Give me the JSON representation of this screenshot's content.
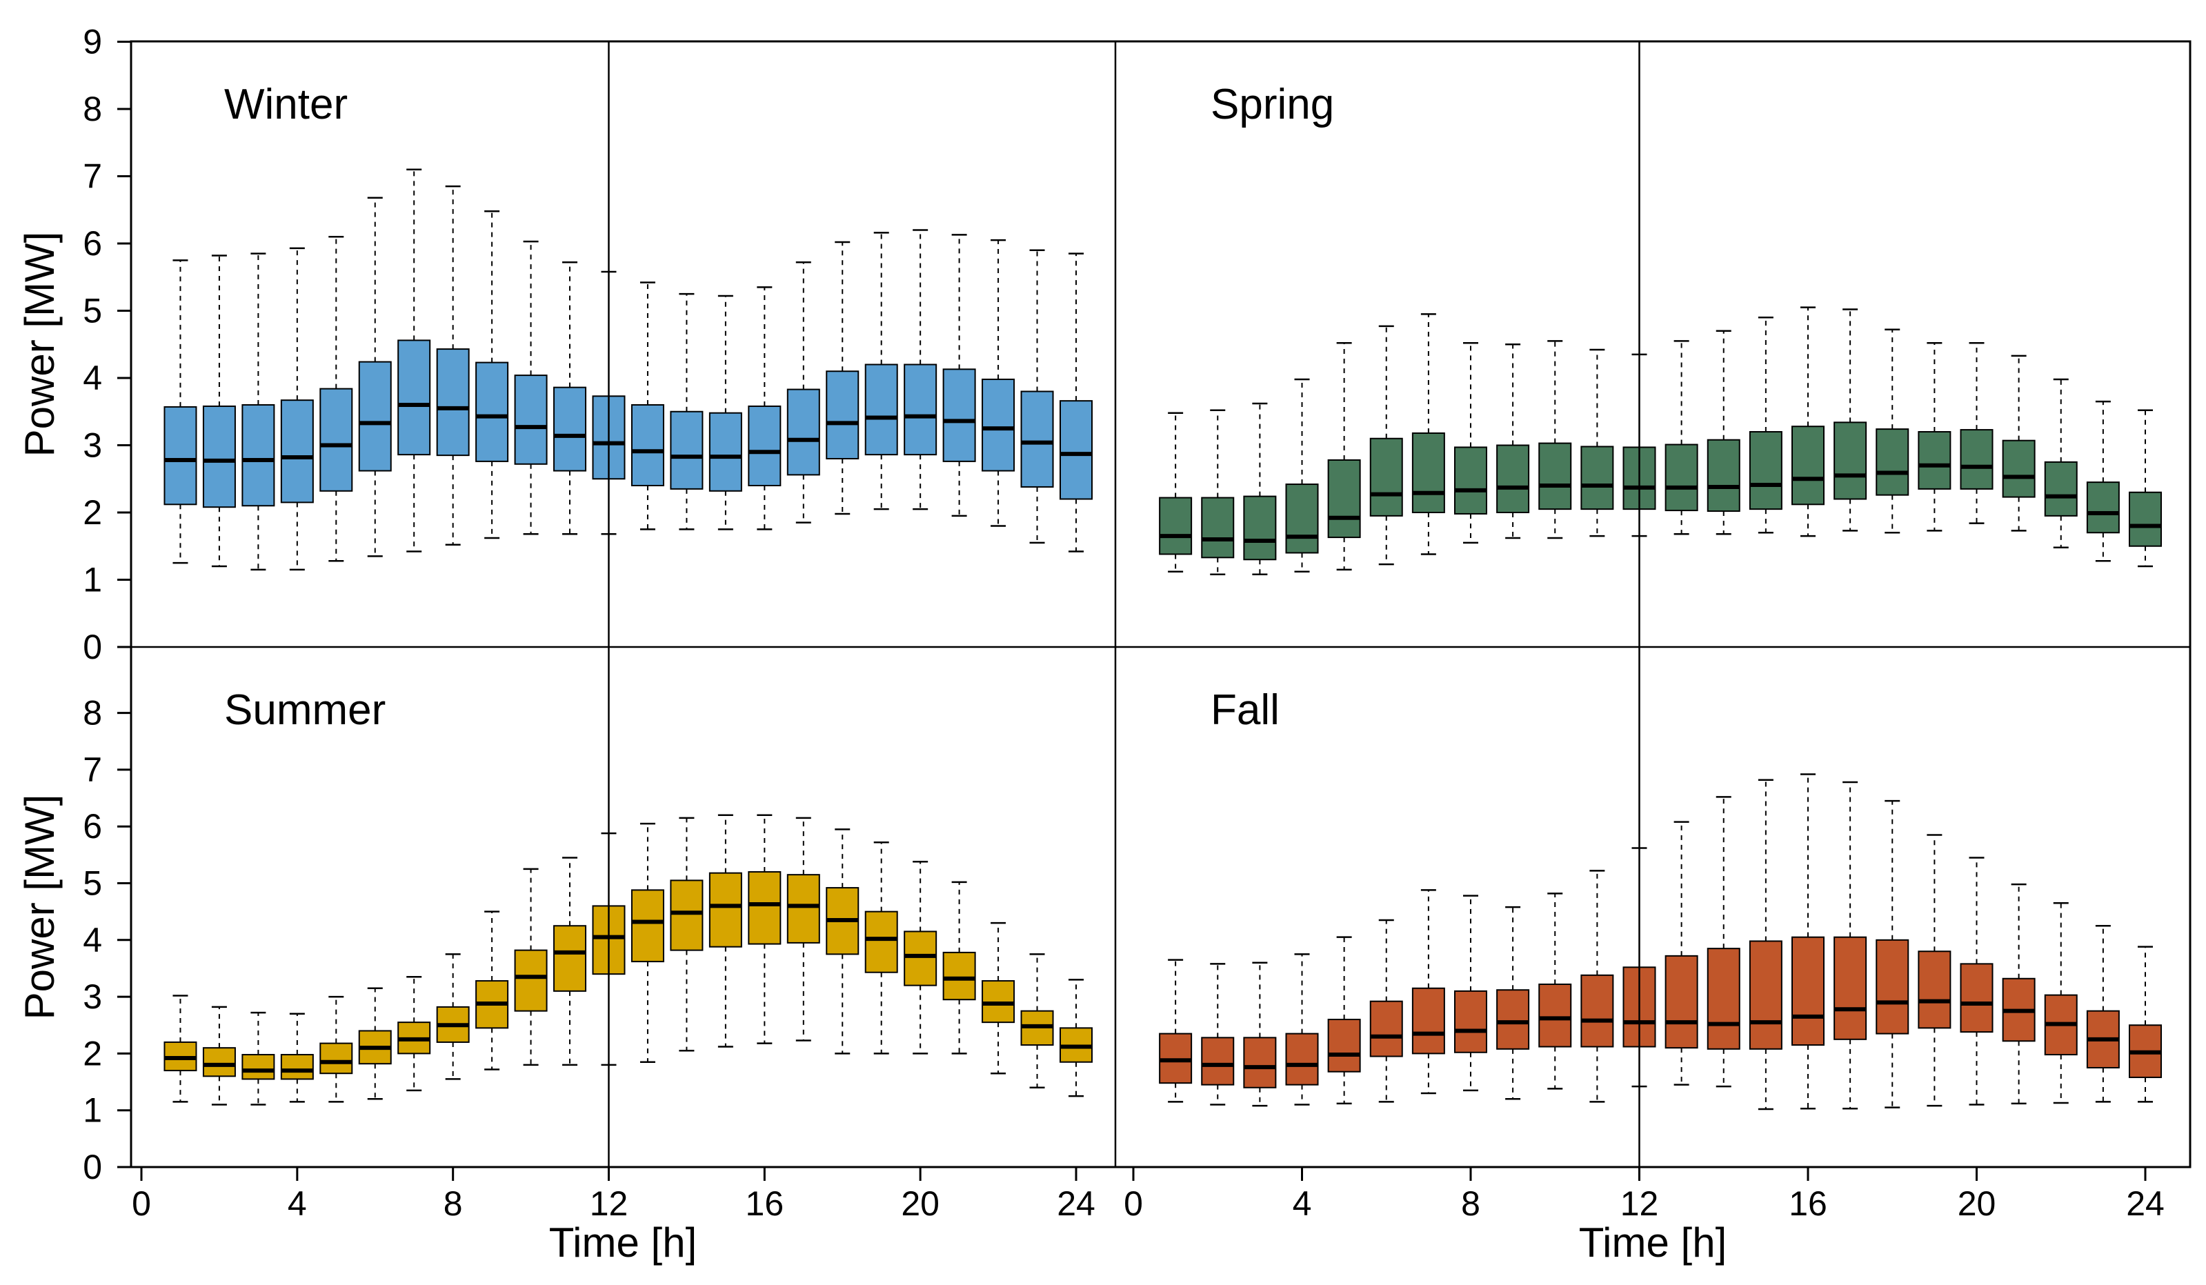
{
  "chart_data": {
    "type": "boxplot",
    "title": "",
    "xlabel": "Time [h]",
    "ylabel": "Power [MW]",
    "xlim": [
      0,
      24
    ],
    "ylim": [
      0,
      9
    ],
    "x_ticks": [
      0,
      4,
      8,
      12,
      16,
      20,
      24
    ],
    "y_ticks_top": [
      0,
      1,
      2,
      3,
      4,
      5,
      6,
      7,
      8,
      9
    ],
    "y_ticks_bottom": [
      0,
      1,
      2,
      3,
      4,
      5,
      6,
      7,
      8
    ],
    "whisker_style": "dashed",
    "reference_line_x": 12,
    "panels": [
      {
        "name": "Winter",
        "color": "#5b9fd2",
        "hours": [
          1,
          2,
          3,
          4,
          5,
          6,
          7,
          8,
          9,
          10,
          11,
          12,
          13,
          14,
          15,
          16,
          17,
          18,
          19,
          20,
          21,
          22,
          23,
          24
        ],
        "whisker_low": [
          1.25,
          1.2,
          1.15,
          1.15,
          1.28,
          1.35,
          1.42,
          1.52,
          1.62,
          1.68,
          1.68,
          1.68,
          1.75,
          1.75,
          1.75,
          1.75,
          1.85,
          1.98,
          2.05,
          2.05,
          1.95,
          1.8,
          1.55,
          1.42
        ],
        "q1": [
          2.12,
          2.08,
          2.1,
          2.15,
          2.32,
          2.62,
          2.86,
          2.85,
          2.76,
          2.72,
          2.62,
          2.5,
          2.4,
          2.35,
          2.32,
          2.4,
          2.56,
          2.8,
          2.86,
          2.86,
          2.76,
          2.62,
          2.38,
          2.2
        ],
        "median": [
          2.78,
          2.77,
          2.78,
          2.82,
          3.0,
          3.33,
          3.6,
          3.55,
          3.43,
          3.27,
          3.14,
          3.03,
          2.91,
          2.83,
          2.83,
          2.9,
          3.08,
          3.33,
          3.41,
          3.43,
          3.36,
          3.25,
          3.04,
          2.87
        ],
        "q3": [
          3.57,
          3.58,
          3.6,
          3.67,
          3.84,
          4.24,
          4.56,
          4.43,
          4.23,
          4.04,
          3.86,
          3.73,
          3.6,
          3.5,
          3.48,
          3.58,
          3.83,
          4.1,
          4.2,
          4.2,
          4.13,
          3.98,
          3.8,
          3.66
        ],
        "whisker_high": [
          5.75,
          5.82,
          5.85,
          5.93,
          6.1,
          6.68,
          7.1,
          6.85,
          6.48,
          6.03,
          5.72,
          5.58,
          5.42,
          5.25,
          5.22,
          5.35,
          5.72,
          6.02,
          6.16,
          6.2,
          6.13,
          6.05,
          5.9,
          5.85
        ]
      },
      {
        "name": "Spring",
        "color": "#487a5b",
        "hours": [
          1,
          2,
          3,
          4,
          5,
          6,
          7,
          8,
          9,
          10,
          11,
          12,
          13,
          14,
          15,
          16,
          17,
          18,
          19,
          20,
          21,
          22,
          23,
          24
        ],
        "whisker_low": [
          1.12,
          1.08,
          1.08,
          1.12,
          1.15,
          1.23,
          1.38,
          1.55,
          1.62,
          1.62,
          1.65,
          1.65,
          1.68,
          1.68,
          1.7,
          1.65,
          1.73,
          1.7,
          1.73,
          1.84,
          1.73,
          1.48,
          1.28,
          1.2
        ],
        "q1": [
          1.38,
          1.33,
          1.3,
          1.4,
          1.63,
          1.95,
          2.0,
          1.98,
          2.0,
          2.05,
          2.05,
          2.05,
          2.03,
          2.02,
          2.05,
          2.12,
          2.2,
          2.26,
          2.35,
          2.35,
          2.23,
          1.95,
          1.7,
          1.5
        ],
        "median": [
          1.65,
          1.6,
          1.58,
          1.64,
          1.92,
          2.27,
          2.29,
          2.33,
          2.37,
          2.4,
          2.4,
          2.37,
          2.37,
          2.38,
          2.41,
          2.5,
          2.55,
          2.59,
          2.7,
          2.68,
          2.53,
          2.24,
          1.99,
          1.8
        ],
        "q3": [
          2.22,
          2.22,
          2.24,
          2.42,
          2.78,
          3.1,
          3.18,
          2.97,
          3.0,
          3.03,
          2.98,
          2.97,
          3.01,
          3.08,
          3.2,
          3.28,
          3.34,
          3.24,
          3.2,
          3.23,
          3.07,
          2.75,
          2.45,
          2.3
        ],
        "whisker_high": [
          3.48,
          3.52,
          3.62,
          3.98,
          4.52,
          4.77,
          4.95,
          4.52,
          4.5,
          4.55,
          4.42,
          4.35,
          4.55,
          4.7,
          4.9,
          5.05,
          5.02,
          4.72,
          4.52,
          4.52,
          4.33,
          3.98,
          3.65,
          3.52
        ]
      },
      {
        "name": "Summer",
        "color": "#d6a500",
        "hours": [
          1,
          2,
          3,
          4,
          5,
          6,
          7,
          8,
          9,
          10,
          11,
          12,
          13,
          14,
          15,
          16,
          17,
          18,
          19,
          20,
          21,
          22,
          23,
          24
        ],
        "whisker_low": [
          1.15,
          1.1,
          1.1,
          1.15,
          1.15,
          1.2,
          1.35,
          1.55,
          1.72,
          1.8,
          1.8,
          1.8,
          1.85,
          2.05,
          2.12,
          2.18,
          2.23,
          2.0,
          2.0,
          2.0,
          2.0,
          1.65,
          1.4,
          1.25
        ],
        "q1": [
          1.7,
          1.6,
          1.55,
          1.55,
          1.65,
          1.82,
          2.0,
          2.2,
          2.45,
          2.75,
          3.1,
          3.4,
          3.62,
          3.82,
          3.88,
          3.93,
          3.95,
          3.75,
          3.43,
          3.2,
          2.95,
          2.55,
          2.15,
          1.85
        ],
        "median": [
          1.92,
          1.8,
          1.7,
          1.7,
          1.85,
          2.1,
          2.25,
          2.5,
          2.88,
          3.35,
          3.78,
          4.05,
          4.32,
          4.48,
          4.6,
          4.63,
          4.6,
          4.35,
          4.02,
          3.72,
          3.32,
          2.88,
          2.48,
          2.12
        ],
        "q3": [
          2.2,
          2.1,
          1.98,
          1.98,
          2.18,
          2.4,
          2.55,
          2.82,
          3.28,
          3.82,
          4.25,
          4.6,
          4.88,
          5.05,
          5.18,
          5.2,
          5.15,
          4.92,
          4.5,
          4.15,
          3.78,
          3.28,
          2.75,
          2.45
        ],
        "whisker_high": [
          3.02,
          2.82,
          2.72,
          2.7,
          3.0,
          3.15,
          3.35,
          3.75,
          4.5,
          5.25,
          5.45,
          5.88,
          6.05,
          6.15,
          6.2,
          6.2,
          6.15,
          5.95,
          5.72,
          5.38,
          5.02,
          4.3,
          3.75,
          3.3
        ]
      },
      {
        "name": "Fall",
        "color": "#c0562a",
        "hours": [
          1,
          2,
          3,
          4,
          5,
          6,
          7,
          8,
          9,
          10,
          11,
          12,
          13,
          14,
          15,
          16,
          17,
          18,
          19,
          20,
          21,
          22,
          23,
          24
        ],
        "whisker_low": [
          1.15,
          1.1,
          1.08,
          1.1,
          1.12,
          1.15,
          1.3,
          1.35,
          1.2,
          1.38,
          1.15,
          1.42,
          1.45,
          1.42,
          1.02,
          1.03,
          1.03,
          1.05,
          1.08,
          1.1,
          1.12,
          1.13,
          1.15,
          1.15
        ],
        "q1": [
          1.48,
          1.45,
          1.4,
          1.45,
          1.68,
          1.95,
          2.0,
          2.02,
          2.08,
          2.12,
          2.12,
          2.12,
          2.1,
          2.08,
          2.08,
          2.15,
          2.25,
          2.35,
          2.45,
          2.38,
          2.22,
          1.98,
          1.75,
          1.58
        ],
        "median": [
          1.88,
          1.8,
          1.76,
          1.8,
          1.98,
          2.3,
          2.35,
          2.4,
          2.55,
          2.62,
          2.58,
          2.55,
          2.55,
          2.52,
          2.55,
          2.65,
          2.78,
          2.9,
          2.92,
          2.88,
          2.75,
          2.52,
          2.25,
          2.02
        ],
        "q3": [
          2.35,
          2.28,
          2.28,
          2.35,
          2.6,
          2.92,
          3.15,
          3.1,
          3.12,
          3.22,
          3.38,
          3.52,
          3.72,
          3.85,
          3.98,
          4.05,
          4.05,
          4.0,
          3.8,
          3.58,
          3.32,
          3.03,
          2.75,
          2.5
        ],
        "whisker_high": [
          3.65,
          3.58,
          3.6,
          3.75,
          4.05,
          4.35,
          4.88,
          4.78,
          4.58,
          4.82,
          5.22,
          5.62,
          6.08,
          6.52,
          6.82,
          6.92,
          6.78,
          6.45,
          5.85,
          5.45,
          4.98,
          4.65,
          4.25,
          3.88
        ]
      }
    ]
  }
}
